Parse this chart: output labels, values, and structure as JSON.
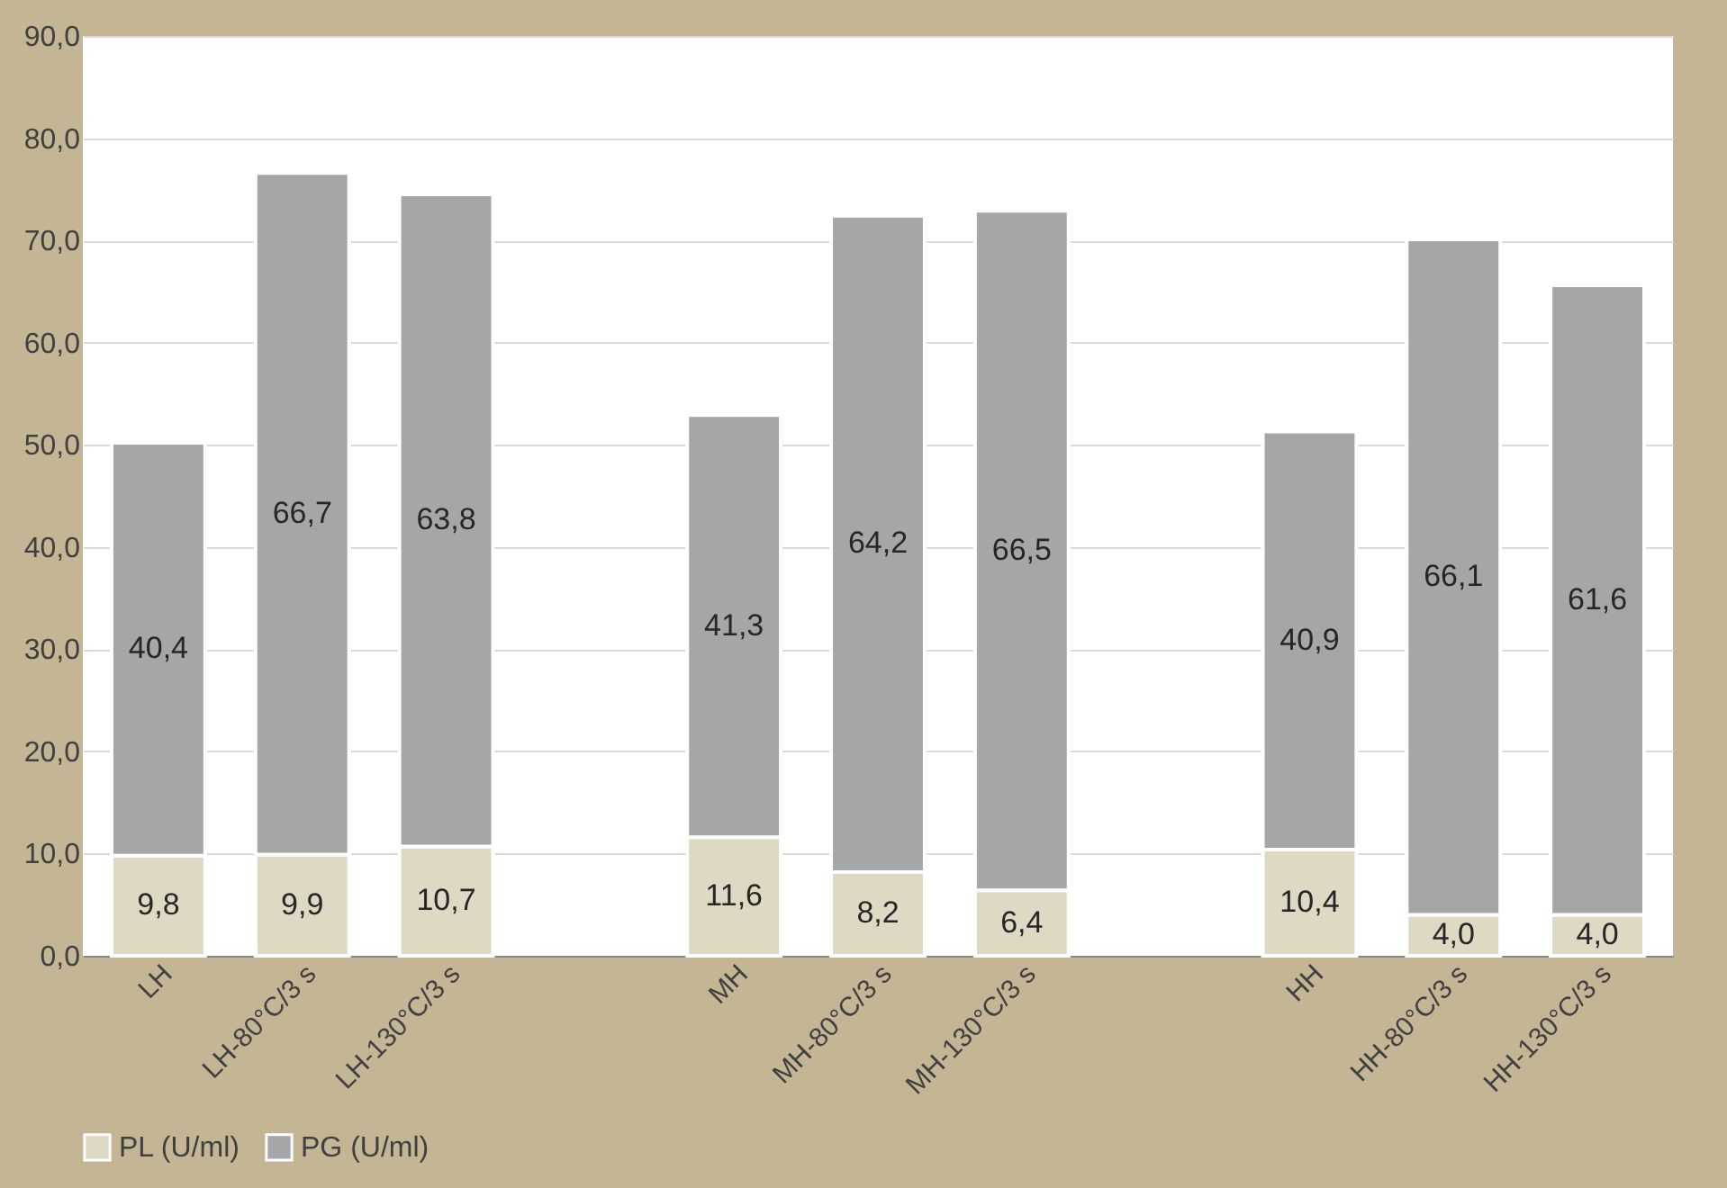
{
  "chart_data": {
    "type": "bar",
    "stacked": true,
    "categories": [
      "LH",
      "LH-80°C/3 s",
      "LH-130°C/3 s",
      null,
      "MH",
      "MH-80°C/3 s",
      "MH-130°C/3 s",
      null,
      "HH",
      "HH-80°C/3 s",
      "HH-130°C/3 s"
    ],
    "series": [
      {
        "name": "PL (U/ml)",
        "color": "#ddd9c3",
        "values": [
          9.8,
          9.9,
          10.7,
          null,
          11.6,
          8.2,
          6.4,
          null,
          10.4,
          4.0,
          4.0
        ],
        "value_labels": [
          "9,8",
          "9,9",
          "10,7",
          null,
          "11,6",
          "8,2",
          "6,4",
          null,
          "10,4",
          "4,0",
          "4,0"
        ]
      },
      {
        "name": "PG (U/ml)",
        "color": "#a6a6a6",
        "values": [
          40.4,
          66.7,
          63.8,
          null,
          41.3,
          64.2,
          66.5,
          null,
          40.9,
          66.1,
          61.6
        ],
        "value_labels": [
          "40,4",
          "66,7",
          "63,8",
          null,
          "41,3",
          "64,2",
          "66,5",
          null,
          "40,9",
          "66,1",
          "61,6"
        ]
      }
    ],
    "ylim": [
      0,
      90
    ],
    "yticks": [
      {
        "value": 0,
        "label": "0,0"
      },
      {
        "value": 10,
        "label": "10,0"
      },
      {
        "value": 20,
        "label": "20,0"
      },
      {
        "value": 30,
        "label": "30,0"
      },
      {
        "value": 40,
        "label": "40,0"
      },
      {
        "value": 50,
        "label": "50,0"
      },
      {
        "value": 60,
        "label": "60,0"
      },
      {
        "value": 70,
        "label": "70,0"
      },
      {
        "value": 80,
        "label": "80,0"
      },
      {
        "value": 90,
        "label": "90,0"
      }
    ],
    "grid": "y",
    "legend": "bottom"
  }
}
